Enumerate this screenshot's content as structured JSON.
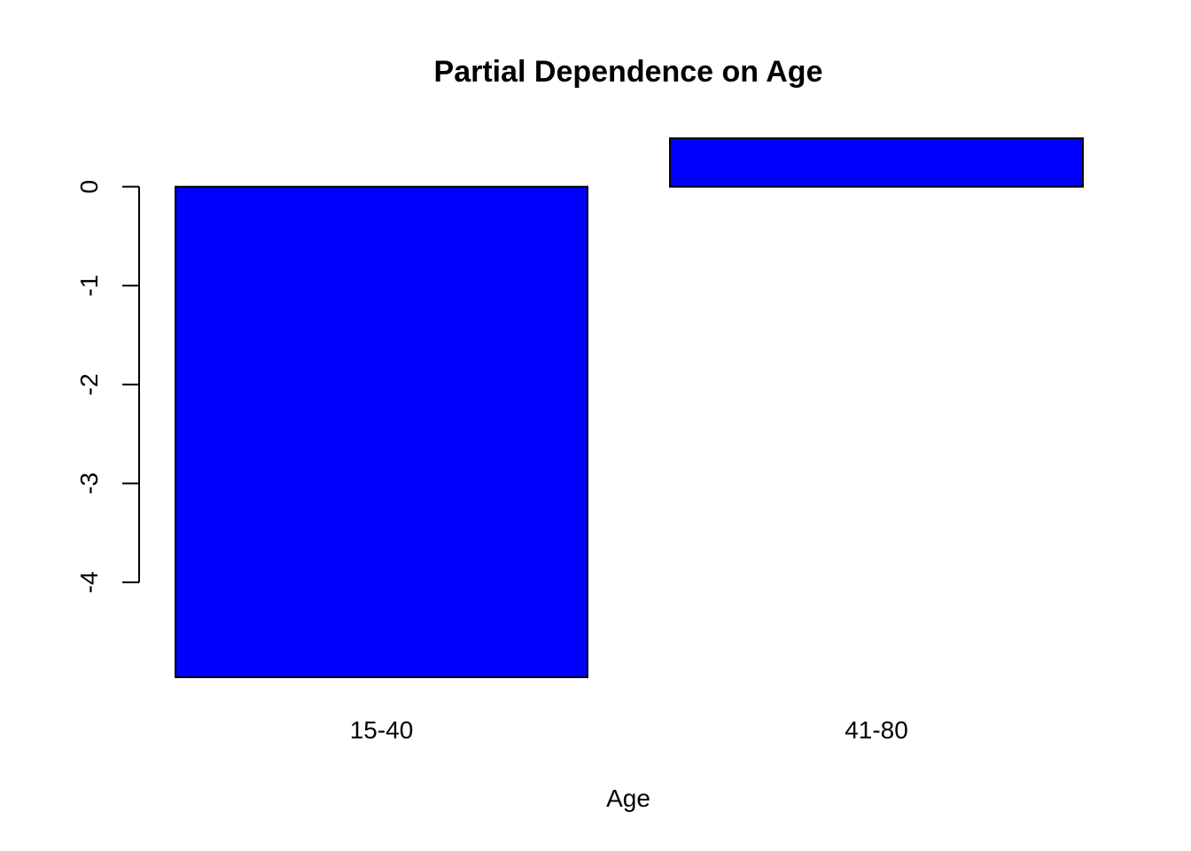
{
  "chart_data": {
    "type": "bar",
    "title": "Partial Dependence on Age",
    "xlabel": "Age",
    "ylabel": "",
    "categories": [
      "15-40",
      "41-80"
    ],
    "values": [
      -4.96,
      0.49
    ],
    "yticks": [
      0,
      -1,
      -2,
      -3,
      -4
    ],
    "ylim": [
      -4.96,
      0.49
    ],
    "grid": false,
    "legend": "none",
    "bar_color": "#0000ff"
  }
}
